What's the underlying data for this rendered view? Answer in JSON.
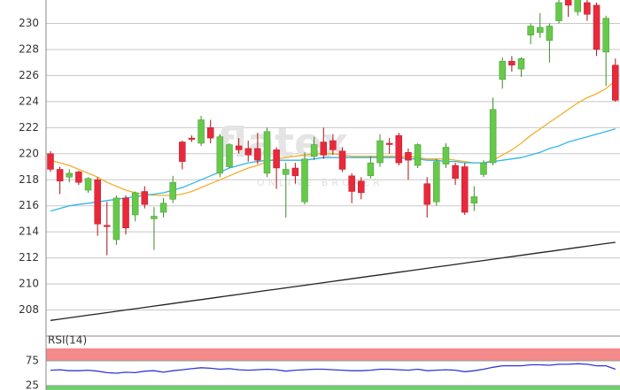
{
  "chart_data": [
    {
      "type": "candlestick",
      "watermark": [
        "flatex",
        "ONLINE BROKER"
      ],
      "open": [
        220.0,
        218.8,
        218.2,
        218.6,
        217.2,
        218.0,
        214.5,
        213.4,
        216.6,
        215.3,
        217.1,
        215.0,
        215.5,
        216.5,
        220.9,
        221.2,
        220.8,
        222.0,
        218.5,
        219.0,
        220.6,
        220.4,
        220.4,
        218.5,
        220.3,
        218.4,
        218.9,
        216.3,
        219.8,
        220.9,
        221.0,
        220.2,
        218.3,
        217.9,
        218.3,
        219.3,
        220.8,
        221.4,
        220.1,
        219.1,
        217.7,
        216.3,
        219.2,
        219.1,
        219.0,
        216.2,
        218.4,
        219.3,
        225.7,
        227.1,
        226.5,
        229.1,
        229.3,
        228.7,
        230.2,
        231.9,
        230.9,
        231.6,
        231.4,
        227.8,
        226.8
      ],
      "high": [
        220.2,
        219.0,
        218.8,
        218.7,
        218.2,
        218.2,
        216.3,
        216.8,
        216.8,
        217.1,
        217.5,
        215.9,
        216.6,
        218.3,
        221.0,
        221.4,
        222.9,
        222.6,
        221.5,
        220.8,
        221.2,
        221.0,
        221.6,
        222.0,
        220.5,
        219.3,
        219.3,
        220.1,
        221.3,
        222.0,
        221.5,
        220.5,
        218.5,
        218.2,
        219.8,
        221.5,
        221.2,
        221.6,
        220.4,
        220.8,
        218.2,
        219.6,
        220.8,
        219.3,
        219.3,
        217.5,
        219.5,
        224.3,
        227.4,
        227.5,
        227.4,
        230.0,
        230.8,
        230.0,
        232.0,
        232.0,
        232.3,
        232.0,
        231.6,
        230.6,
        227.3
      ],
      "low": [
        218.6,
        216.9,
        217.8,
        217.6,
        217.0,
        213.7,
        212.2,
        213.0,
        213.8,
        214.8,
        215.8,
        212.6,
        215.1,
        216.2,
        218.8,
        220.9,
        220.6,
        220.8,
        218.2,
        218.9,
        220.0,
        219.4,
        219.2,
        218.2,
        217.3,
        215.1,
        217.7,
        216.1,
        219.5,
        219.6,
        219.9,
        218.6,
        216.2,
        216.5,
        218.1,
        219.0,
        220.0,
        219.1,
        218.0,
        218.9,
        215.1,
        216.0,
        218.9,
        217.6,
        215.3,
        215.6,
        218.2,
        219.1,
        225.0,
        226.3,
        225.9,
        228.4,
        228.9,
        227.0,
        230.0,
        230.5,
        230.6,
        230.2,
        227.5,
        225.2,
        224.0
      ],
      "close": [
        218.8,
        217.9,
        218.5,
        217.8,
        218.1,
        214.6,
        214.4,
        216.6,
        214.3,
        217.0,
        216.1,
        215.2,
        216.2,
        217.8,
        219.4,
        221.1,
        222.6,
        221.2,
        221.3,
        220.7,
        220.3,
        219.9,
        219.5,
        221.7,
        218.9,
        218.8,
        218.3,
        219.6,
        220.7,
        219.9,
        220.3,
        218.8,
        217.1,
        217.0,
        219.3,
        221.0,
        220.7,
        219.3,
        219.5,
        220.7,
        216.1,
        219.4,
        220.5,
        218.1,
        215.5,
        216.7,
        219.3,
        223.4,
        227.1,
        226.8,
        227.3,
        229.8,
        229.7,
        229.8,
        231.6,
        231.4,
        232.3,
        230.7,
        228.0,
        230.4,
        224.1
      ],
      "up_color": "#66c94a",
      "down_color": "#e8293b",
      "series": [
        {
          "color": "#f0b030",
          "values": [
            219.5,
            219.3,
            219.1,
            218.8,
            218.5,
            218.2,
            217.8,
            217.5,
            217.2,
            217.0,
            216.9,
            216.8,
            216.8,
            216.8,
            216.9,
            217.1,
            217.4,
            217.7,
            218.0,
            218.3,
            218.6,
            218.9,
            219.1,
            219.4,
            219.6,
            219.7,
            219.8,
            219.9,
            220.0,
            220.0,
            220.0,
            219.9,
            219.8,
            219.8,
            219.8,
            219.8,
            219.8,
            219.8,
            219.8,
            219.7,
            219.6,
            219.6,
            219.6,
            219.5,
            219.4,
            219.3,
            219.3,
            219.5,
            219.9,
            220.3,
            220.8,
            221.4,
            221.9,
            222.4,
            222.9,
            223.4,
            223.9,
            224.3,
            224.6,
            225.0,
            225.6
          ]
        },
        {
          "color": "#30b8e8",
          "values": [
            215.6,
            215.8,
            216.0,
            216.1,
            216.2,
            216.3,
            216.4,
            216.5,
            216.6,
            216.7,
            216.8,
            216.9,
            217.0,
            217.2,
            217.4,
            217.7,
            218.0,
            218.3,
            218.6,
            218.9,
            219.1,
            219.3,
            219.4,
            219.5,
            219.5,
            219.5,
            219.5,
            219.5,
            219.6,
            219.7,
            219.7,
            219.7,
            219.7,
            219.7,
            219.7,
            219.7,
            219.7,
            219.7,
            219.6,
            219.6,
            219.5,
            219.5,
            219.4,
            219.4,
            219.3,
            219.3,
            219.3,
            219.4,
            219.5,
            219.6,
            219.7,
            219.9,
            220.1,
            220.4,
            220.6,
            220.9,
            221.1,
            221.3,
            221.5,
            221.7,
            221.9
          ]
        },
        {
          "color": "#222222",
          "values": [
            207.2,
            207.3,
            207.4,
            207.5,
            207.6,
            207.7,
            207.8,
            207.9,
            208.0,
            208.1,
            208.2,
            208.3,
            208.4,
            208.5,
            208.6,
            208.7,
            208.8,
            208.9,
            209.0,
            209.1,
            209.2,
            209.3,
            209.4,
            209.5,
            209.6,
            209.7,
            209.8,
            209.9,
            210.0,
            210.1,
            210.2,
            210.3,
            210.4,
            210.5,
            210.6,
            210.7,
            210.8,
            210.9,
            211.0,
            211.1,
            211.2,
            211.3,
            211.4,
            211.5,
            211.6,
            211.7,
            211.8,
            211.9,
            212.0,
            212.1,
            212.2,
            212.3,
            212.4,
            212.5,
            212.6,
            212.7,
            212.8,
            212.9,
            213.0,
            213.1,
            213.2
          ]
        }
      ],
      "ylim": [
        206,
        231.8
      ],
      "yticks": [
        208,
        210,
        212,
        214,
        216,
        218,
        220,
        222,
        224,
        226,
        228,
        230
      ],
      "grid": true
    },
    {
      "type": "line",
      "title": "RSI(14)",
      "series": [
        {
          "color": "#3535d8",
          "values": [
            56,
            57,
            55,
            55,
            56,
            54,
            51,
            50,
            52,
            51,
            54,
            55,
            52,
            55,
            57,
            59,
            61,
            60,
            58,
            59,
            57,
            56,
            57,
            58,
            57,
            54,
            56,
            57,
            58,
            58,
            57,
            56,
            55,
            55,
            56,
            58,
            58,
            57,
            56,
            58,
            55,
            56,
            57,
            56,
            53,
            55,
            58,
            62,
            65,
            65,
            65,
            67,
            67,
            66,
            68,
            68,
            69,
            68,
            65,
            65,
            58
          ]
        }
      ],
      "bands": [
        {
          "range": [
            75,
            100
          ],
          "color": "#f48a8a"
        },
        {
          "range": [
            16,
            25
          ],
          "color": "#6fd06f"
        }
      ],
      "ylim": [
        16,
        100
      ],
      "yticks": [
        75,
        25
      ]
    }
  ]
}
